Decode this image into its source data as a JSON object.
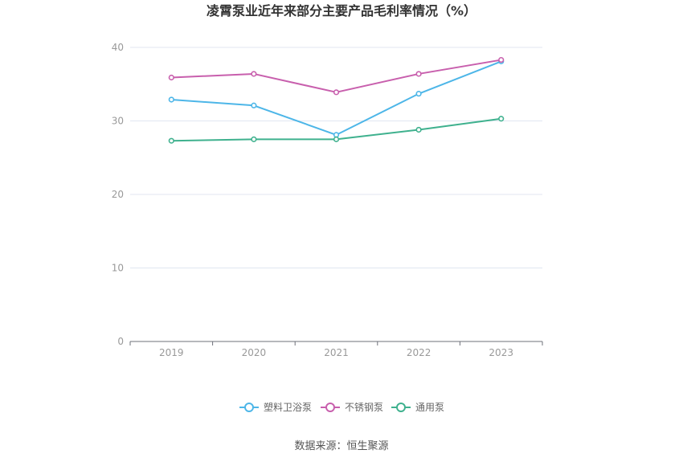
{
  "chart_data": {
    "type": "line",
    "title": "凌霄泵业近年来部分主要产品毛利率情况（%）",
    "categories": [
      "2019",
      "2020",
      "2021",
      "2022",
      "2023"
    ],
    "ylim": [
      0,
      40
    ],
    "yticks": [
      0,
      10,
      20,
      30,
      40
    ],
    "grid": true,
    "legend_position": "bottom-center",
    "series": [
      {
        "name": "塑料卫浴泵",
        "color": "#4db6e8",
        "values": [
          32.9,
          32.1,
          28.1,
          33.7,
          38.1
        ]
      },
      {
        "name": "不锈钢泵",
        "color": "#c85fad",
        "values": [
          35.9,
          36.4,
          33.9,
          36.4,
          38.3
        ]
      },
      {
        "name": "通用泵",
        "color": "#3fb18e",
        "values": [
          27.3,
          27.5,
          27.5,
          28.8,
          30.3
        ]
      }
    ]
  },
  "footer": {
    "source": "数据来源：恒生聚源"
  }
}
